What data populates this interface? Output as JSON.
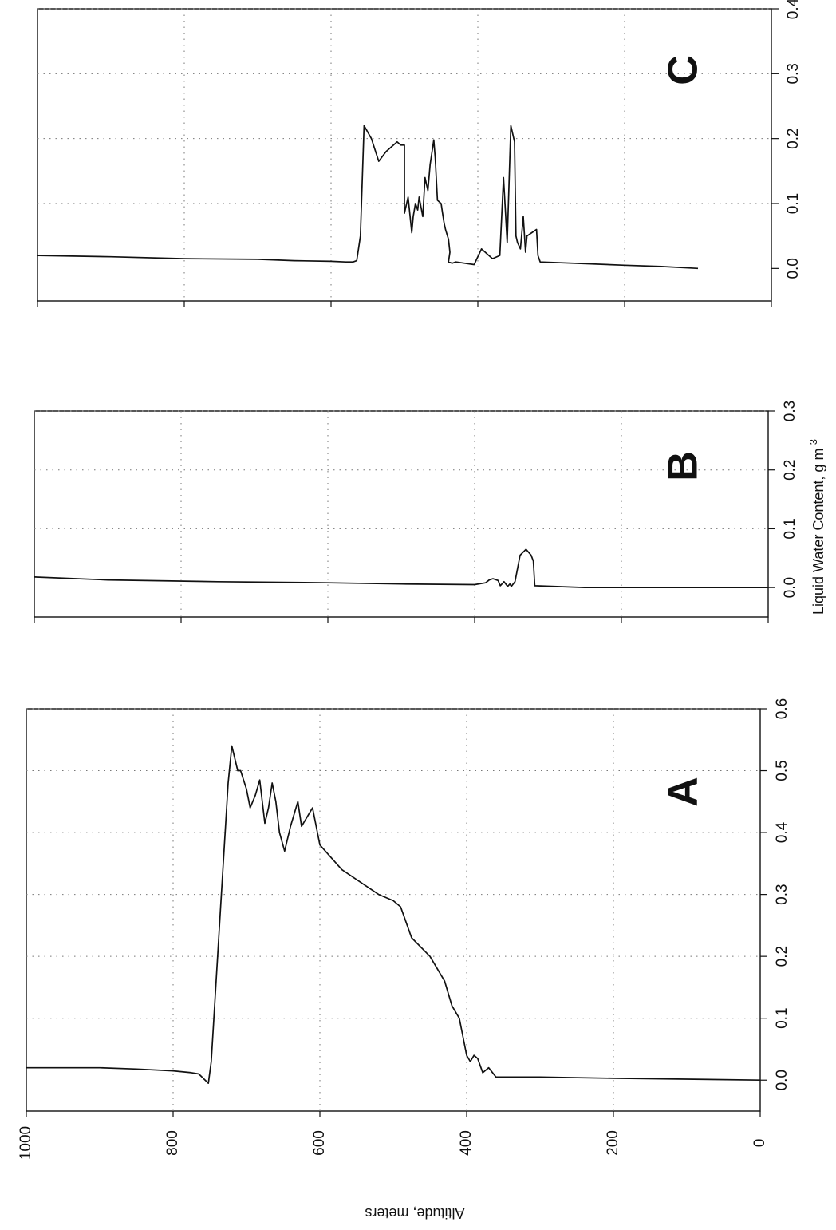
{
  "chart_data": [
    {
      "type": "line",
      "panel": "C",
      "series": [
        {
          "x": [
            0.02,
            0.018,
            0.015,
            0.014,
            0.012,
            0.011,
            0.01,
            0.01,
            0.012,
            0.05,
            0.22,
            0.2,
            0.165,
            0.18,
            0.195,
            0.19,
            0.19,
            0.085,
            0.11,
            0.055,
            0.08,
            0.1,
            0.09,
            0.11,
            0.08,
            0.14,
            0.12,
            0.16,
            0.198,
            0.17,
            0.105,
            0.1,
            0.085,
            0.07,
            0.06,
            0.045,
            0.025,
            0.01,
            0.008,
            0.01,
            0.006,
            0.03,
            0.015,
            0.02,
            0.14,
            0.04,
            0.22,
            0.195,
            0.05,
            0.04,
            0.03,
            0.08,
            0.025,
            0.05,
            0.06,
            0.02,
            0.01,
            0.005,
            0.003,
            0.0
          ],
          "y": [
            1000,
            900,
            800,
            700,
            650,
            600,
            580,
            570,
            565,
            560,
            555,
            545,
            535,
            525,
            510,
            505,
            500,
            500,
            495,
            490,
            488,
            485,
            482,
            480,
            475,
            472,
            468,
            465,
            460,
            458,
            455,
            450,
            448,
            446,
            444,
            440,
            438,
            440,
            435,
            430,
            405,
            395,
            380,
            370,
            365,
            360,
            355,
            350,
            348,
            346,
            342,
            338,
            335,
            333,
            320,
            318,
            315,
            200,
            150,
            100
          ]
        }
      ],
      "xlim": [
        -0.05,
        0.4
      ],
      "ylim": [
        0,
        1000
      ],
      "x_ticks": [
        "0.0",
        "0.1",
        "0.2",
        "0.3",
        "0.4"
      ],
      "grid": true
    },
    {
      "type": "line",
      "panel": "B",
      "series": [
        {
          "x": [
            0.018,
            0.013,
            0.01,
            0.008,
            0.006,
            0.005,
            0.008,
            0.013,
            0.015,
            0.012,
            0.003,
            0.01,
            0.002,
            0.006,
            0.002,
            0.01,
            0.055,
            0.065,
            0.055,
            0.045,
            0.003,
            0.0,
            0.0,
            0.0
          ],
          "y": [
            1000,
            900,
            750,
            600,
            500,
            400,
            385,
            380,
            375,
            368,
            365,
            360,
            355,
            352,
            350,
            345,
            338,
            330,
            323,
            320,
            318,
            250,
            150,
            0
          ]
        }
      ],
      "xlim": [
        -0.05,
        0.3
      ],
      "ylim": [
        0,
        1000
      ],
      "x_ticks": [
        "0.0",
        "0.1",
        "0.2",
        "0.3"
      ],
      "xlabel": "Liquid Water Content, g m-3",
      "grid": true
    },
    {
      "type": "line",
      "panel": "A",
      "series": [
        {
          "x": [
            0.02,
            0.02,
            0.018,
            0.015,
            0.012,
            0.01,
            -0.005,
            0.03,
            0.48,
            0.54,
            0.5,
            0.5,
            0.47,
            0.44,
            0.46,
            0.485,
            0.415,
            0.44,
            0.48,
            0.45,
            0.4,
            0.37,
            0.41,
            0.45,
            0.41,
            0.44,
            0.38,
            0.34,
            0.3,
            0.29,
            0.28,
            0.23,
            0.2,
            0.16,
            0.12,
            0.1,
            0.07,
            0.04,
            0.03,
            0.04,
            0.035,
            0.012,
            0.02,
            0.005,
            0.005,
            0.003,
            0.0
          ],
          "y": [
            1000,
            900,
            850,
            800,
            775,
            765,
            752,
            748,
            725,
            720,
            712,
            708,
            700,
            695,
            688,
            682,
            675,
            670,
            665,
            660,
            655,
            648,
            640,
            630,
            625,
            610,
            600,
            570,
            520,
            500,
            490,
            475,
            450,
            430,
            420,
            410,
            405,
            400,
            395,
            390,
            385,
            378,
            370,
            360,
            300,
            200,
            0
          ]
        }
      ],
      "xlim": [
        -0.05,
        0.6
      ],
      "ylim": [
        0,
        1000
      ],
      "x_ticks": [
        "0.0",
        "0.1",
        "0.2",
        "0.3",
        "0.4",
        "0.5",
        "0.6"
      ],
      "y_ticks": [
        "1000",
        "800",
        "600",
        "400",
        "200",
        "0"
      ],
      "ylabel": "Altitude, meters",
      "grid": true
    }
  ],
  "labels": {
    "panel_a": "A",
    "panel_b": "B",
    "panel_c": "C",
    "xlabel_b_main": "Liquid Water Content, g m",
    "xlabel_b_sup": "-3",
    "ylabel": "Altitude, meters"
  }
}
